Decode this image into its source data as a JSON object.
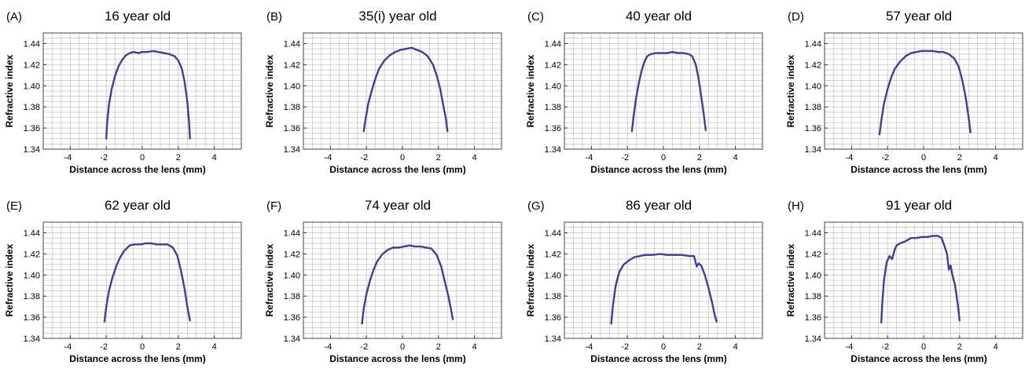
{
  "chart_data": [
    {
      "type": "line",
      "panel_label": "(A)",
      "title": "16 year old",
      "xlabel": "Distance across the lens (mm)",
      "ylabel": "Refractive index",
      "xlim": [
        -5.5,
        5.5
      ],
      "ylim": [
        1.34,
        1.45
      ],
      "xticks": [
        -4,
        -2,
        0,
        2,
        4
      ],
      "yticks": [
        1.34,
        1.36,
        1.38,
        1.4,
        1.42,
        1.44
      ],
      "grid": true,
      "series": [
        {
          "color": "#3b3f98",
          "x": [
            -2.0,
            -1.95,
            -1.85,
            -1.7,
            -1.5,
            -1.3,
            -1.1,
            -0.9,
            -0.7,
            -0.5,
            -0.2,
            0.0,
            0.3,
            0.6,
            0.9,
            1.2,
            1.5,
            1.8,
            2.0,
            2.2,
            2.35,
            2.5,
            2.6,
            2.65
          ],
          "y": [
            1.35,
            1.365,
            1.382,
            1.397,
            1.41,
            1.419,
            1.425,
            1.429,
            1.431,
            1.432,
            1.431,
            1.432,
            1.432,
            1.433,
            1.432,
            1.431,
            1.43,
            1.428,
            1.424,
            1.416,
            1.404,
            1.385,
            1.365,
            1.35
          ]
        }
      ]
    },
    {
      "type": "line",
      "panel_label": "(B)",
      "title": "35(i) year old",
      "xlabel": "Distance across the lens (mm)",
      "ylabel": "Refractive index",
      "xlim": [
        -5.5,
        5.5
      ],
      "ylim": [
        1.34,
        1.45
      ],
      "xticks": [
        -4,
        -2,
        0,
        2,
        4
      ],
      "yticks": [
        1.34,
        1.36,
        1.38,
        1.4,
        1.42,
        1.44
      ],
      "grid": true,
      "series": [
        {
          "color": "#3b3f98",
          "x": [
            -2.15,
            -2.05,
            -1.9,
            -1.7,
            -1.5,
            -1.3,
            -1.0,
            -0.7,
            -0.4,
            -0.1,
            0.2,
            0.5,
            0.8,
            1.1,
            1.4,
            1.7,
            1.9,
            2.1,
            2.25,
            2.4,
            2.5
          ],
          "y": [
            1.357,
            1.368,
            1.383,
            1.396,
            1.407,
            1.416,
            1.424,
            1.429,
            1.432,
            1.434,
            1.435,
            1.436,
            1.434,
            1.432,
            1.428,
            1.42,
            1.41,
            1.397,
            1.383,
            1.37,
            1.357
          ]
        }
      ]
    },
    {
      "type": "line",
      "panel_label": "(C)",
      "title": "40 year old",
      "xlabel": "Distance across the lens (mm)",
      "ylabel": "Refractive index",
      "xlim": [
        -5.5,
        5.5
      ],
      "ylim": [
        1.34,
        1.45
      ],
      "xticks": [
        -4,
        -2,
        0,
        2,
        4
      ],
      "yticks": [
        1.34,
        1.36,
        1.38,
        1.4,
        1.42,
        1.44
      ],
      "grid": true,
      "series": [
        {
          "color": "#3b3f98",
          "x": [
            -1.75,
            -1.65,
            -1.5,
            -1.35,
            -1.2,
            -1.05,
            -0.9,
            -0.7,
            -0.4,
            -0.1,
            0.2,
            0.5,
            0.8,
            1.1,
            1.4,
            1.6,
            1.8,
            1.95,
            2.1,
            2.25,
            2.35
          ],
          "y": [
            1.357,
            1.372,
            1.39,
            1.404,
            1.415,
            1.423,
            1.428,
            1.43,
            1.431,
            1.431,
            1.431,
            1.432,
            1.431,
            1.431,
            1.43,
            1.428,
            1.42,
            1.407,
            1.39,
            1.372,
            1.358
          ]
        }
      ]
    },
    {
      "type": "line",
      "panel_label": "(D)",
      "title": "57 year old",
      "xlabel": "Distance across the lens (mm)",
      "ylabel": "Refractive index",
      "xlim": [
        -5.5,
        5.5
      ],
      "ylim": [
        1.34,
        1.45
      ],
      "xticks": [
        -4,
        -2,
        0,
        2,
        4
      ],
      "yticks": [
        1.34,
        1.36,
        1.38,
        1.4,
        1.42,
        1.44
      ],
      "grid": true,
      "series": [
        {
          "color": "#3b3f98",
          "x": [
            -2.45,
            -2.35,
            -2.2,
            -2.0,
            -1.8,
            -1.6,
            -1.3,
            -1.0,
            -0.7,
            -0.4,
            -0.1,
            0.2,
            0.5,
            0.8,
            1.1,
            1.4,
            1.7,
            1.95,
            2.15,
            2.35,
            2.5,
            2.6
          ],
          "y": [
            1.354,
            1.367,
            1.383,
            1.397,
            1.408,
            1.416,
            1.423,
            1.428,
            1.431,
            1.432,
            1.433,
            1.433,
            1.433,
            1.432,
            1.432,
            1.43,
            1.426,
            1.418,
            1.405,
            1.388,
            1.37,
            1.356
          ]
        }
      ]
    },
    {
      "type": "line",
      "panel_label": "(E)",
      "title": "62 year old",
      "xlabel": "Distance across the lens (mm)",
      "ylabel": "Refractive index",
      "xlim": [
        -5.5,
        5.5
      ],
      "ylim": [
        1.34,
        1.45
      ],
      "xticks": [
        -4,
        -2,
        0,
        2,
        4
      ],
      "yticks": [
        1.34,
        1.36,
        1.38,
        1.4,
        1.42,
        1.44
      ],
      "grid": true,
      "series": [
        {
          "color": "#3b3f98",
          "x": [
            -2.1,
            -2.0,
            -1.85,
            -1.65,
            -1.45,
            -1.25,
            -1.0,
            -0.7,
            -0.4,
            -0.1,
            0.2,
            0.5,
            0.8,
            1.1,
            1.4,
            1.7,
            1.95,
            2.15,
            2.35,
            2.5,
            2.65
          ],
          "y": [
            1.356,
            1.37,
            1.385,
            1.398,
            1.408,
            1.416,
            1.423,
            1.428,
            1.429,
            1.429,
            1.43,
            1.43,
            1.429,
            1.429,
            1.429,
            1.426,
            1.418,
            1.404,
            1.387,
            1.37,
            1.357
          ]
        }
      ]
    },
    {
      "type": "line",
      "panel_label": "(F)",
      "title": "74 year old",
      "xlabel": "Distance across the lens (mm)",
      "ylabel": "Refractive index",
      "xlim": [
        -5.5,
        5.5
      ],
      "ylim": [
        1.34,
        1.45
      ],
      "xticks": [
        -4,
        -2,
        0,
        2,
        4
      ],
      "yticks": [
        1.34,
        1.36,
        1.38,
        1.4,
        1.42,
        1.44
      ],
      "grid": true,
      "series": [
        {
          "color": "#3b3f98",
          "x": [
            -2.25,
            -2.15,
            -2.0,
            -1.8,
            -1.6,
            -1.4,
            -1.1,
            -0.8,
            -0.5,
            -0.2,
            0.1,
            0.4,
            0.7,
            1.0,
            1.3,
            1.6,
            1.9,
            2.15,
            2.35,
            2.55,
            2.7,
            2.8
          ],
          "y": [
            1.354,
            1.368,
            1.382,
            1.395,
            1.405,
            1.413,
            1.42,
            1.424,
            1.426,
            1.426,
            1.427,
            1.428,
            1.427,
            1.427,
            1.426,
            1.425,
            1.419,
            1.408,
            1.394,
            1.38,
            1.367,
            1.358
          ]
        }
      ]
    },
    {
      "type": "line",
      "panel_label": "(G)",
      "title": "86 year old",
      "xlabel": "Distance across the lens (mm)",
      "ylabel": "Refractive index",
      "xlim": [
        -5.5,
        5.5
      ],
      "ylim": [
        1.34,
        1.45
      ],
      "xticks": [
        -4,
        -2,
        0,
        2,
        4
      ],
      "yticks": [
        1.34,
        1.36,
        1.38,
        1.4,
        1.42,
        1.44
      ],
      "grid": true,
      "series": [
        {
          "color": "#3b3f98",
          "x": [
            -2.9,
            -2.8,
            -2.65,
            -2.45,
            -2.2,
            -1.9,
            -1.6,
            -1.3,
            -1.0,
            -0.6,
            -0.2,
            0.2,
            0.6,
            1.0,
            1.4,
            1.7,
            1.85,
            1.95,
            2.1,
            2.3,
            2.5,
            2.7,
            2.85,
            2.95
          ],
          "y": [
            1.354,
            1.372,
            1.39,
            1.403,
            1.41,
            1.414,
            1.417,
            1.418,
            1.419,
            1.419,
            1.42,
            1.419,
            1.419,
            1.419,
            1.418,
            1.418,
            1.408,
            1.411,
            1.409,
            1.4,
            1.388,
            1.374,
            1.362,
            1.356
          ]
        }
      ]
    },
    {
      "type": "line",
      "panel_label": "(H)",
      "title": "91 year old",
      "xlabel": "Distance across the lens (mm)",
      "ylabel": "Refractive index",
      "xlim": [
        -5.5,
        5.5
      ],
      "ylim": [
        1.34,
        1.45
      ],
      "xticks": [
        -4,
        -2,
        0,
        2,
        4
      ],
      "yticks": [
        1.34,
        1.36,
        1.38,
        1.4,
        1.42,
        1.44
      ],
      "grid": true,
      "series": [
        {
          "color": "#3b3f98",
          "x": [
            -2.35,
            -2.3,
            -2.2,
            -2.05,
            -1.9,
            -1.75,
            -1.6,
            -1.5,
            -1.3,
            -1.0,
            -0.7,
            -0.4,
            -0.1,
            0.2,
            0.5,
            0.8,
            1.0,
            1.15,
            1.3,
            1.4,
            1.5,
            1.6,
            1.75,
            1.9,
            2.0
          ],
          "y": [
            1.355,
            1.372,
            1.395,
            1.412,
            1.418,
            1.415,
            1.424,
            1.428,
            1.43,
            1.432,
            1.435,
            1.435,
            1.436,
            1.436,
            1.437,
            1.437,
            1.435,
            1.428,
            1.42,
            1.405,
            1.409,
            1.4,
            1.39,
            1.372,
            1.357
          ]
        }
      ]
    }
  ]
}
